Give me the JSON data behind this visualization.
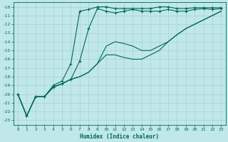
{
  "xlabel": "Humidex (Indice chaleur)",
  "bg_color": "#c0e8e8",
  "grid_color": "#a8d0d0",
  "line_color": "#006858",
  "xlim": [
    -0.5,
    23.5
  ],
  "ylim": [
    -23.5,
    -9.5
  ],
  "yticks": [
    -10,
    -11,
    -12,
    -13,
    -14,
    -15,
    -16,
    -17,
    -18,
    -19,
    -20,
    -21,
    -22,
    -23
  ],
  "xticks": [
    0,
    1,
    2,
    3,
    4,
    5,
    6,
    7,
    8,
    9,
    10,
    11,
    12,
    13,
    14,
    15,
    16,
    17,
    18,
    19,
    20,
    21,
    22,
    23
  ],
  "line1_x": [
    0,
    1,
    2,
    3,
    4,
    5,
    6,
    7,
    8,
    9,
    10,
    11,
    12,
    13,
    14,
    15,
    16,
    17,
    18,
    19,
    20,
    21,
    22,
    23
  ],
  "line1_y": [
    -20.0,
    -22.5,
    -20.3,
    -20.3,
    -19.0,
    -18.5,
    -16.5,
    -10.5,
    -10.3,
    -10.0,
    -10.0,
    -10.2,
    -10.2,
    -10.2,
    -10.2,
    -10.2,
    -10.0,
    -10.0,
    -10.2,
    -10.2,
    -10.1,
    -10.1,
    -10.1,
    -10.1
  ],
  "line2_x": [
    0,
    1,
    2,
    3,
    4,
    5,
    6,
    7,
    8,
    9,
    10,
    11,
    12,
    13,
    14,
    15,
    16,
    17,
    18,
    19,
    20,
    21,
    22,
    23
  ],
  "line2_y": [
    -20.0,
    -22.5,
    -20.3,
    -20.3,
    -19.2,
    -18.8,
    -18.3,
    -16.2,
    -12.5,
    -10.2,
    -10.5,
    -10.7,
    -10.5,
    -10.3,
    -10.5,
    -10.5,
    -10.5,
    -10.3,
    -10.5,
    -10.5,
    -10.3,
    -10.2,
    -10.3,
    -10.2
  ],
  "line3_x": [
    0,
    1,
    2,
    3,
    4,
    5,
    6,
    7,
    8,
    9,
    10,
    11,
    12,
    13,
    14,
    15,
    16,
    17,
    18,
    19,
    20,
    21,
    22,
    23
  ],
  "line3_y": [
    -20.0,
    -22.5,
    -20.3,
    -20.3,
    -19.2,
    -18.8,
    -18.3,
    -18.0,
    -17.5,
    -16.5,
    -15.5,
    -15.5,
    -15.8,
    -16.0,
    -16.0,
    -15.5,
    -15.0,
    -14.0,
    -13.2,
    -12.5,
    -12.0,
    -11.5,
    -11.0,
    -10.5
  ],
  "line4_x": [
    0,
    1,
    2,
    3,
    4,
    5,
    6,
    7,
    8,
    9,
    10,
    11,
    12,
    13,
    14,
    15,
    16,
    17,
    18,
    19,
    20,
    21,
    22,
    23
  ],
  "line4_y": [
    -20.0,
    -22.5,
    -20.3,
    -20.3,
    -19.2,
    -18.8,
    -18.3,
    -18.0,
    -17.5,
    -16.5,
    -14.5,
    -14.0,
    -14.2,
    -14.5,
    -15.0,
    -15.0,
    -14.5,
    -14.0,
    -13.2,
    -12.5,
    -12.0,
    -11.5,
    -11.0,
    -10.5
  ]
}
